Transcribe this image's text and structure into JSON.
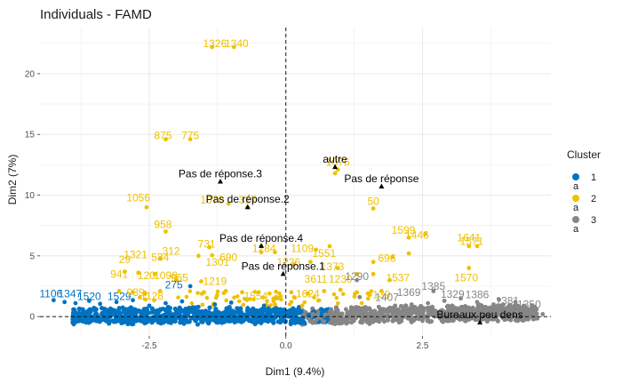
{
  "chart_data": {
    "type": "scatter",
    "title": "Individuals - FAMD",
    "xlabel": "Dim1 (9.4%)",
    "ylabel": "Dim2 (7%)",
    "xlim": [
      -4.5,
      4.85
    ],
    "ylim": [
      -1.6,
      23.8
    ],
    "x_ticks": [
      -2.5,
      0,
      2.5
    ],
    "x_tick_labels": [
      "-2.5",
      "0.0",
      "2.5"
    ],
    "y_ticks": [
      0,
      5,
      10,
      15,
      20
    ],
    "y_tick_labels": [
      "0",
      "5",
      "10",
      "15",
      "20"
    ],
    "grid": true,
    "reference_lines": {
      "x": 0,
      "y": 0,
      "style": "dashed"
    },
    "legend": {
      "title": "Cluster",
      "placement": "right",
      "entries": [
        {
          "label": "1",
          "color": "#0073C2"
        },
        {
          "label": "2",
          "color": "#EFC000"
        },
        {
          "label": "3",
          "color": "#868686"
        }
      ],
      "key_letter": "a"
    },
    "series": [
      {
        "name": "1",
        "color": "#0073C2",
        "points": [
          [
            -4.25,
            1.35
          ],
          [
            -4.05,
            1.2
          ],
          [
            -3.85,
            1.1
          ],
          [
            -3.6,
            1.3
          ],
          [
            -3.4,
            1.05
          ],
          [
            -3.1,
            1.2
          ],
          [
            -2.8,
            1.35
          ],
          [
            -2.5,
            0.9
          ],
          [
            -2.2,
            1.1
          ],
          [
            -1.9,
            1.25
          ],
          [
            -1.6,
            0.8
          ],
          [
            -1.3,
            1.0
          ],
          [
            -1.0,
            1.15
          ],
          [
            -0.7,
            0.7
          ],
          [
            -0.4,
            0.9
          ],
          [
            -0.1,
            0.6
          ],
          [
            0.2,
            0.5
          ],
          [
            0.5,
            0.4
          ],
          [
            -3.3,
            0.3
          ],
          [
            -2.9,
            0.55
          ],
          [
            -2.6,
            0.25
          ],
          [
            -2.3,
            0.6
          ],
          [
            -2.0,
            0.35
          ],
          [
            -1.7,
            0.5
          ],
          [
            -1.8,
            -0.45
          ],
          [
            -2.4,
            -0.3
          ],
          [
            -3.0,
            -0.2
          ],
          [
            -1.2,
            -0.25
          ],
          [
            -0.6,
            -0.3
          ],
          [
            -3.7,
            -0.2
          ],
          [
            -1.75,
            2.5
          ]
        ],
        "labels": [
          {
            "text": "1106",
            "x": -4.3,
            "y": 1.6
          },
          {
            "text": "1347",
            "x": -3.95,
            "y": 1.6
          },
          {
            "text": "1520",
            "x": -3.6,
            "y": 1.35
          },
          {
            "text": "1529",
            "x": -3.05,
            "y": 1.35
          },
          {
            "text": "275",
            "x": -2.05,
            "y": 2.3
          }
        ]
      },
      {
        "name": "2",
        "color": "#EFC000",
        "points": [
          [
            -1.35,
            22.2
          ],
          [
            -0.95,
            22.2
          ],
          [
            -2.2,
            14.6
          ],
          [
            -1.75,
            14.6
          ],
          [
            -2.55,
            9.0
          ],
          [
            -2.2,
            7.0
          ],
          [
            -1.4,
            5.7
          ],
          [
            -1.35,
            5.05
          ],
          [
            -2.3,
            4.8
          ],
          [
            -1.6,
            5.0
          ],
          [
            -1.05,
            9.3
          ],
          [
            -0.7,
            9.0
          ],
          [
            -0.45,
            5.3
          ],
          [
            -0.2,
            5.3
          ],
          [
            0.15,
            4.3
          ],
          [
            0.45,
            4.5
          ],
          [
            0.55,
            5.5
          ],
          [
            0.8,
            5.8
          ],
          [
            0.95,
            4.0
          ],
          [
            1.3,
            3.5
          ],
          [
            1.6,
            3.5
          ],
          [
            0.9,
            11.8
          ],
          [
            0.95,
            12.1
          ],
          [
            1.6,
            8.9
          ],
          [
            1.6,
            4.5
          ],
          [
            1.95,
            4.9
          ],
          [
            2.25,
            5.2
          ],
          [
            2.25,
            6.5
          ],
          [
            2.55,
            6.8
          ],
          [
            1.9,
            3.0
          ],
          [
            3.35,
            5.8
          ],
          [
            3.5,
            5.8
          ],
          [
            3.35,
            4.0
          ],
          [
            -2.95,
            3.7
          ],
          [
            -2.7,
            3.6
          ],
          [
            -2.4,
            3.5
          ],
          [
            -2.0,
            3.0
          ],
          [
            -1.55,
            2.9
          ],
          [
            -3.05,
            2.1
          ],
          [
            -2.8,
            2.0
          ],
          [
            -2.3,
            2.1
          ],
          [
            -1.5,
            2.0
          ],
          [
            -1.1,
            2.1
          ],
          [
            -0.8,
            2.0
          ],
          [
            -0.5,
            2.0
          ],
          [
            -0.3,
            1.9
          ],
          [
            0.1,
            2.0
          ],
          [
            0.4,
            1.9
          ],
          [
            0.7,
            2.1
          ],
          [
            1.0,
            2.2
          ],
          [
            1.3,
            2.0
          ],
          [
            1.5,
            1.9
          ],
          [
            1.75,
            2.1
          ],
          [
            -0.2,
            1.0
          ],
          [
            0.1,
            1.2
          ],
          [
            0.3,
            0.9
          ]
        ],
        "labels": [
          {
            "text": "1326",
            "x": -1.3,
            "y": 22.2
          },
          {
            "text": "1340",
            "x": -0.9,
            "y": 22.2
          },
          {
            "text": "875",
            "x": -2.25,
            "y": 14.6
          },
          {
            "text": "775",
            "x": -1.75,
            "y": 14.6
          },
          {
            "text": "1076",
            "x": 0.95,
            "y": 12.4
          },
          {
            "text": "1056",
            "x": -2.7,
            "y": 9.5
          },
          {
            "text": "50",
            "x": 1.6,
            "y": 9.2
          },
          {
            "text": "1070",
            "x": -1.35,
            "y": 9.3
          },
          {
            "text": "317",
            "x": -0.7,
            "y": 9.3
          },
          {
            "text": "958",
            "x": -2.25,
            "y": 7.3
          },
          {
            "text": "1599",
            "x": 2.15,
            "y": 6.8
          },
          {
            "text": "1446",
            "x": 2.4,
            "y": 6.4
          },
          {
            "text": "1641",
            "x": 3.35,
            "y": 6.2
          },
          {
            "text": "1571",
            "x": 3.4,
            "y": 5.9
          },
          {
            "text": "731",
            "x": -1.45,
            "y": 5.7
          },
          {
            "text": "312",
            "x": -2.1,
            "y": 5.1
          },
          {
            "text": "1284",
            "x": -0.4,
            "y": 5.3
          },
          {
            "text": "1109",
            "x": 0.3,
            "y": 5.3
          },
          {
            "text": "1551",
            "x": 0.7,
            "y": 4.9
          },
          {
            "text": "1321",
            "x": -2.75,
            "y": 4.8
          },
          {
            "text": "534",
            "x": -2.3,
            "y": 4.6
          },
          {
            "text": "29",
            "x": -2.95,
            "y": 4.4
          },
          {
            "text": "690",
            "x": -1.05,
            "y": 4.6
          },
          {
            "text": "1301",
            "x": -1.25,
            "y": 4.2
          },
          {
            "text": "1226",
            "x": 0.05,
            "y": 4.2
          },
          {
            "text": "1373",
            "x": 0.85,
            "y": 3.8
          },
          {
            "text": "696",
            "x": 1.85,
            "y": 4.5
          },
          {
            "text": "941",
            "x": -3.05,
            "y": 3.2
          },
          {
            "text": "120",
            "x": -2.55,
            "y": 3.1
          },
          {
            "text": "1098",
            "x": -2.2,
            "y": 3.1
          },
          {
            "text": "955",
            "x": -1.95,
            "y": 2.9
          },
          {
            "text": "1537",
            "x": 2.05,
            "y": 2.9
          },
          {
            "text": "1570",
            "x": 3.3,
            "y": 2.9
          },
          {
            "text": "1219",
            "x": -1.3,
            "y": 2.6
          },
          {
            "text": "3611",
            "x": 0.55,
            "y": 2.8
          },
          {
            "text": "1230",
            "x": 1.0,
            "y": 2.8
          },
          {
            "text": "939",
            "x": -2.75,
            "y": 1.7
          },
          {
            "text": "1128",
            "x": -2.45,
            "y": 1.4
          },
          {
            "text": "1554",
            "x": -0.55,
            "y": 1.4
          },
          {
            "text": "1624",
            "x": 0.4,
            "y": 1.6
          },
          {
            "text": "139",
            "x": 1.75,
            "y": 1.5
          }
        ]
      },
      {
        "name": "3",
        "color": "#868686",
        "points": [
          [
            0.5,
            0.2
          ],
          [
            0.8,
            0.4
          ],
          [
            1.1,
            0.6
          ],
          [
            1.4,
            0.5
          ],
          [
            1.7,
            0.8
          ],
          [
            2.0,
            0.9
          ],
          [
            2.3,
            1.0
          ],
          [
            2.6,
            1.1
          ],
          [
            2.9,
            1.3
          ],
          [
            3.2,
            1.5
          ],
          [
            3.5,
            1.2
          ],
          [
            3.8,
            1.0
          ],
          [
            4.1,
            0.8
          ],
          [
            4.4,
            0.5
          ],
          [
            4.7,
            0.2
          ],
          [
            4.5,
            0.9
          ],
          [
            4.2,
            1.2
          ],
          [
            3.9,
            1.4
          ],
          [
            1.0,
            -0.2
          ],
          [
            1.5,
            -0.3
          ],
          [
            2.0,
            -0.25
          ],
          [
            2.5,
            -0.35
          ],
          [
            3.0,
            -0.3
          ],
          [
            3.5,
            -0.25
          ],
          [
            4.0,
            -0.2
          ],
          [
            0.7,
            -0.4
          ],
          [
            1.3,
            3.0
          ],
          [
            1.35,
            1.6
          ],
          [
            2.7,
            2.1
          ]
        ],
        "labels": [
          {
            "text": "1385",
            "x": 2.7,
            "y": 2.2
          },
          {
            "text": "1290",
            "x": 1.3,
            "y": 3.0
          },
          {
            "text": "1386",
            "x": 3.5,
            "y": 1.5
          },
          {
            "text": "1329",
            "x": 3.05,
            "y": 1.55
          },
          {
            "text": "1381",
            "x": 4.05,
            "y": 1.0
          },
          {
            "text": "1350",
            "x": 4.45,
            "y": 0.7
          },
          {
            "text": "1369",
            "x": 2.25,
            "y": 1.7
          },
          {
            "text": "1407",
            "x": 1.85,
            "y": 1.3
          }
        ]
      }
    ],
    "category_points": [
      {
        "label": "Pas de réponse.3",
        "x": -1.2,
        "y": 11.1
      },
      {
        "label": "Pas de réponse.2",
        "x": -0.7,
        "y": 9.0
      },
      {
        "label": "Pas de réponse.4",
        "x": -0.45,
        "y": 5.8
      },
      {
        "label": "Pas de réponse.1",
        "x": -0.05,
        "y": 3.5
      },
      {
        "label": "autre",
        "x": 0.9,
        "y": 12.3
      },
      {
        "label": "Pas de réponse",
        "x": 1.75,
        "y": 10.7
      },
      {
        "label": "Bureaux peu dens",
        "x": 3.55,
        "y": -0.5
      }
    ]
  }
}
